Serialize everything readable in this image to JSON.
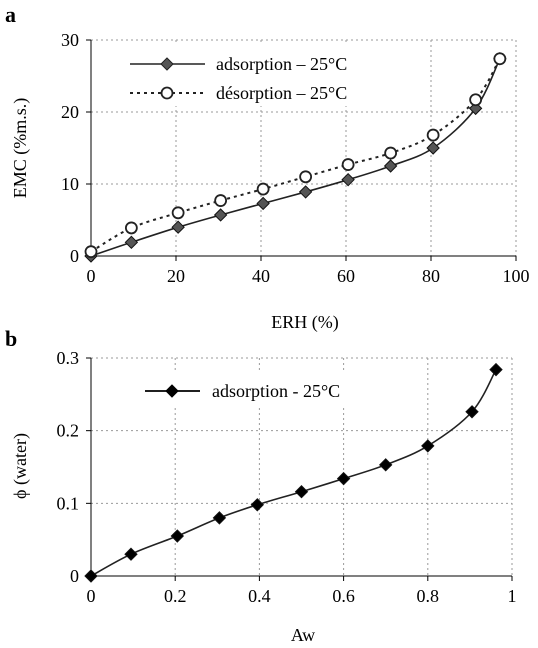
{
  "chart_data": [
    {
      "panel": "a",
      "type": "line",
      "xlabel": "ERH (%)",
      "ylabel": "EMC (%m.s.)",
      "xlim": [
        0,
        100
      ],
      "ylim": [
        0,
        30
      ],
      "x_ticks": [
        0,
        20,
        40,
        60,
        80,
        100
      ],
      "y_ticks": [
        0,
        10,
        20,
        30
      ],
      "grid": true,
      "legend_position": "top-left",
      "series": [
        {
          "name": "adsorption – 25°C",
          "line": "solid",
          "marker": "filled-diamond",
          "color": "#555555",
          "x": [
            0,
            9.5,
            20.5,
            30.5,
            40.5,
            50.5,
            60.5,
            70.5,
            80.5,
            90.5,
            96.2
          ],
          "y": [
            0,
            1.9,
            4.0,
            5.7,
            7.3,
            8.9,
            10.6,
            12.5,
            15.0,
            20.5,
            27.4
          ]
        },
        {
          "name": "désorption – 25°C",
          "line": "dotted",
          "marker": "open-circle",
          "color": "#555555",
          "x": [
            0,
            9.5,
            20.5,
            30.5,
            40.5,
            50.5,
            60.5,
            70.5,
            80.5,
            90.5,
            96.2
          ],
          "y": [
            0.6,
            3.9,
            6.0,
            7.7,
            9.3,
            11.0,
            12.7,
            14.3,
            16.8,
            21.7,
            27.4
          ]
        }
      ]
    },
    {
      "panel": "b",
      "type": "line",
      "xlabel": "Aw",
      "ylabel": "ϕ (water)",
      "xlim": [
        0,
        1
      ],
      "ylim": [
        0,
        0.3
      ],
      "x_ticks": [
        "0",
        "0.2",
        "0.4",
        "0.6",
        "0.8",
        "1"
      ],
      "y_ticks": [
        "0",
        "0.1",
        "0.2",
        "0.3"
      ],
      "grid": true,
      "legend_position": "top-left",
      "series": [
        {
          "name": "adsorption - 25°C",
          "line": "solid",
          "marker": "filled-diamond",
          "color": "#000000",
          "x": [
            0,
            0.095,
            0.205,
            0.305,
            0.395,
            0.5,
            0.6,
            0.7,
            0.8,
            0.905,
            0.962
          ],
          "y": [
            0,
            0.03,
            0.055,
            0.08,
            0.098,
            0.116,
            0.134,
            0.153,
            0.179,
            0.226,
            0.284
          ]
        }
      ]
    }
  ]
}
